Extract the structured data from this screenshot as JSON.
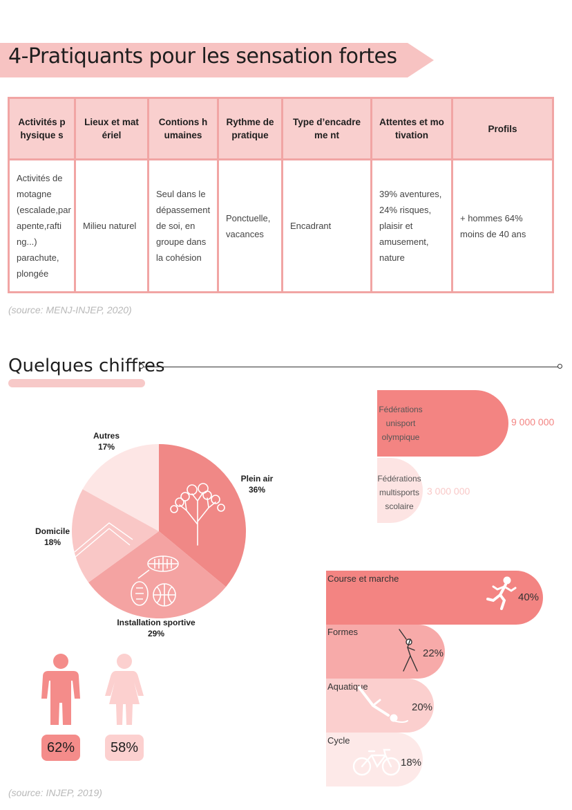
{
  "title": "4-Pratiquants pour les sensation fortes",
  "table": {
    "headers": [
      "Activités physique s",
      "Lieux et matériel",
      "Contions humaines",
      "Rythme de pratique",
      "Type d’encadreme nt",
      "Attentes et motivation",
      "Profils"
    ],
    "row": [
      "Activités de motagne (escalade,par apente,rafti ng...) parachute, plongée",
      "Milieu naturel",
      "Seul dans le dépassement de soi, en groupe dans la cohésion",
      "Ponctuelle, vacances",
      "Encadrant",
      "39% aventures, 24% risques, plaisir et amusement, nature",
      "+ hommes 64% moins de 40 ans"
    ]
  },
  "source1": "(source: MENJ-INJEP, 2020)",
  "section_title": "Quelques chiffres",
  "chart_data": [
    {
      "type": "pie",
      "slices": [
        {
          "label": "Plein air",
          "value": 36,
          "display": "36%",
          "color": "#f08886",
          "icon": "tree-icon"
        },
        {
          "label": "Installation sportive",
          "value": 29,
          "display": "29%",
          "color": "#f4a3a2",
          "icon": "sports-balls-icon"
        },
        {
          "label": "Domicile",
          "value": 18,
          "display": "18%",
          "color": "#f9c7c6",
          "icon": "house-icon"
        },
        {
          "label": "Autres",
          "value": 17,
          "display": "17%",
          "color": "#fde6e5",
          "icon": ""
        }
      ]
    },
    {
      "type": "bar",
      "orientation": "horizontal",
      "series": [
        {
          "label": "Fédérations unisport olympique",
          "value": 9000000,
          "display": "9 000 000",
          "color": "#f38482"
        },
        {
          "label": "Fédérations multisports scolaire",
          "value": 3000000,
          "display": "3 000 000",
          "color": "#fde4e3"
        }
      ]
    },
    {
      "type": "bar",
      "orientation": "horizontal",
      "series": [
        {
          "label": "Course et marche",
          "value": 40,
          "display": "40%",
          "color": "#f38482",
          "icon": "runner-icon"
        },
        {
          "label": "Formes",
          "value": 22,
          "display": "22%",
          "color": "#f7aaa9",
          "icon": "stretching-icon"
        },
        {
          "label": "Aquatique",
          "value": 20,
          "display": "20%",
          "color": "#fbcfce",
          "icon": "diver-icon"
        },
        {
          "label": "Cycle",
          "value": 18,
          "display": "18%",
          "color": "#fde9e8",
          "icon": "bicycle-icon"
        }
      ]
    }
  ],
  "gender": {
    "male": {
      "display": "62%",
      "color": "#f48c8a",
      "icon": "man-icon"
    },
    "female": {
      "display": "58%",
      "color": "#fcd0cf",
      "icon": "woman-icon"
    }
  },
  "source2": "(source: INJEP, 2019)"
}
